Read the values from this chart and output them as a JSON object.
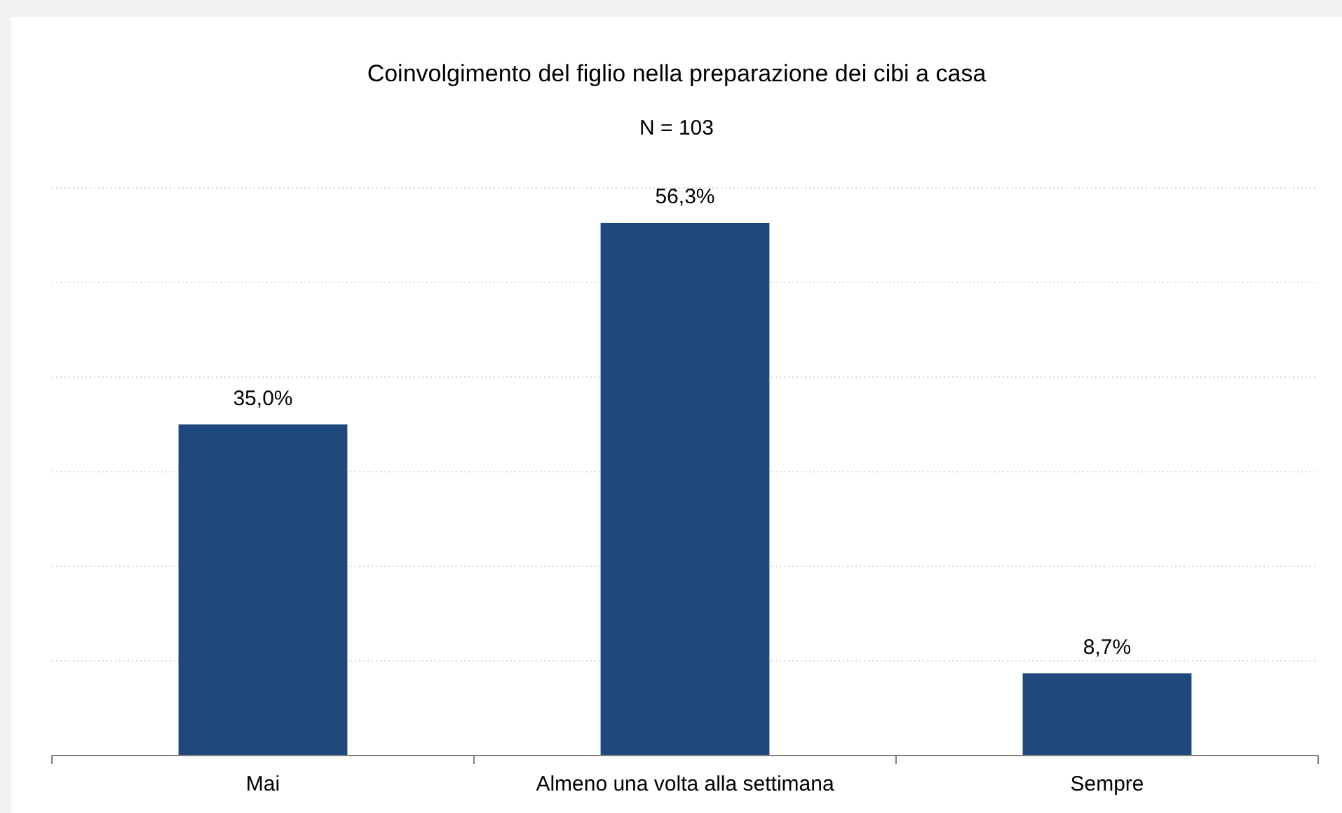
{
  "chart_data": {
    "type": "bar",
    "title": "Coinvolgimento del figlio nella preparazione dei cibi a casa",
    "subtitle": "N = 103",
    "categories": [
      "Mai",
      "Almeno una volta alla settimana",
      "Sempre"
    ],
    "values": [
      35.0,
      56.3,
      8.7
    ],
    "value_labels": [
      "35,0%",
      "56,3%",
      "8,7%"
    ],
    "color": "#1f497d",
    "ylim": [
      0,
      60
    ],
    "yticks": [
      {
        "value": 0,
        "label": null
      },
      {
        "value": 10,
        "label": null
      },
      {
        "value": 20,
        "label": null
      },
      {
        "value": 30,
        "label": null
      },
      {
        "value": 40,
        "label": null
      },
      {
        "value": 50,
        "label": null
      },
      {
        "value": 60,
        "label": null
      }
    ],
    "grid": "y",
    "tick_labels": "x"
  }
}
